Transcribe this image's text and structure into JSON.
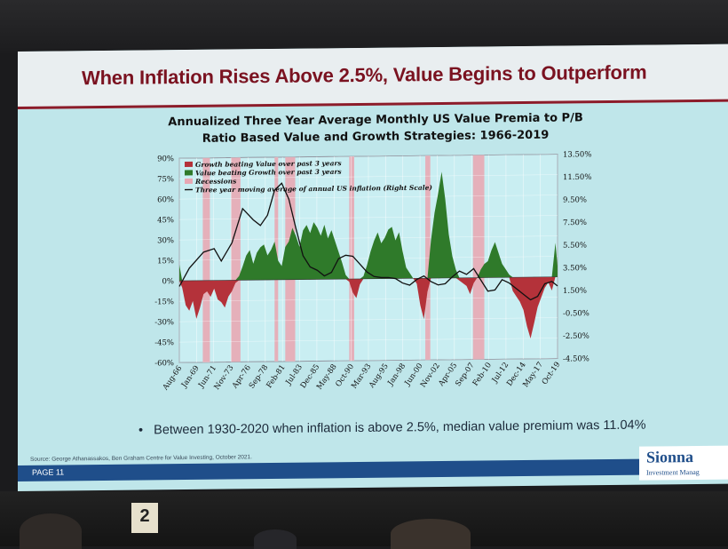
{
  "slide": {
    "title": "When Inflation Rises Above 2.5%, Value Begins to Outperform",
    "bullet_marker": "•",
    "bullet": "Between 1930-2020 when inflation is above 2.5%, median value premium was 11.04%",
    "source": "Source: George Athanassakos, Ben Graham Centre for Value Investing, October 2021.",
    "page": "PAGE  11",
    "logo_name": "Sionna",
    "logo_sub": "Investment Manag"
  },
  "room": {
    "sign_label": "2"
  },
  "colors": {
    "growth": "#b4323a",
    "value": "#2f7a2a",
    "recession": "#e8a8b4",
    "inflation_line": "#111111",
    "title": "#7a1220"
  },
  "chart_data": {
    "type": "area",
    "title_line1": "Annualized Three Year Average Monthly US Value Premia to P/B",
    "title_line2": "Ratio Based Value and Growth Strategies: 1966-2019",
    "legend": [
      "Growth beating Value over past 3 years",
      "Value beating Growth over past 3 years",
      "Recessions",
      "Three year moving average of annual US inflation (Right Scale)"
    ],
    "legend_placement": "top-left",
    "x_ticks": [
      "Aug-66",
      "Jan-69",
      "Jun-71",
      "Nov-73",
      "Apr-76",
      "Sep-78",
      "Feb-81",
      "Jul-83",
      "Dec-85",
      "May-88",
      "Oct-90",
      "Mar-93",
      "Aug-95",
      "Jan-98",
      "Jun-00",
      "Nov-02",
      "Apr-05",
      "Sep-07",
      "Feb-10",
      "Jul-12",
      "Dec-14",
      "May-17",
      "Oct-19"
    ],
    "x_range": [
      1966.6,
      2019.8
    ],
    "y_left_ticks": [
      "90%",
      "75%",
      "60%",
      "45%",
      "30%",
      "15%",
      "0%",
      "-15%",
      "-30%",
      "-45%",
      "-60%"
    ],
    "y_left_range": [
      -60,
      90
    ],
    "y_right_ticks": [
      "13.50%",
      "11.50%",
      "9.50%",
      "7.50%",
      "5.50%",
      "3.50%",
      "1.50%",
      "-0.50%",
      "-2.50%",
      "-4.50%"
    ],
    "y_right_range": [
      -4.5,
      13.5
    ],
    "recessions": [
      [
        1969.9,
        1970.9
      ],
      [
        1973.9,
        1975.2
      ],
      [
        1980.0,
        1980.5
      ],
      [
        1981.5,
        1982.9
      ],
      [
        1990.5,
        1991.2
      ],
      [
        2001.2,
        2001.9
      ],
      [
        2007.9,
        2009.5
      ]
    ],
    "premia": {
      "x": [
        1966.6,
        1967.0,
        1967.5,
        1968.0,
        1968.5,
        1969.0,
        1969.5,
        1970.0,
        1970.5,
        1971.0,
        1971.5,
        1972.0,
        1972.5,
        1973.0,
        1973.5,
        1974.0,
        1974.5,
        1975.0,
        1975.5,
        1976.0,
        1976.5,
        1977.0,
        1977.5,
        1978.0,
        1978.5,
        1979.0,
        1979.5,
        1980.0,
        1980.5,
        1981.0,
        1981.5,
        1982.0,
        1982.5,
        1983.0,
        1983.5,
        1984.0,
        1984.5,
        1985.0,
        1985.5,
        1986.0,
        1986.5,
        1987.0,
        1987.5,
        1988.0,
        1988.5,
        1989.0,
        1989.5,
        1990.0,
        1990.5,
        1991.0,
        1991.5,
        1992.0,
        1992.5,
        1993.0,
        1993.5,
        1994.0,
        1994.5,
        1995.0,
        1995.5,
        1996.0,
        1996.5,
        1997.0,
        1997.5,
        1998.0,
        1998.5,
        1999.0,
        1999.5,
        2000.0,
        2000.5,
        2001.0,
        2001.5,
        2002.0,
        2002.5,
        2003.0,
        2003.5,
        2004.0,
        2004.5,
        2005.0,
        2005.5,
        2006.0,
        2006.5,
        2007.0,
        2007.5,
        2008.0,
        2008.5,
        2009.0,
        2009.5,
        2010.0,
        2010.5,
        2011.0,
        2011.5,
        2012.0,
        2012.5,
        2013.0,
        2013.5,
        2014.0,
        2014.5,
        2015.0,
        2015.5,
        2016.0,
        2016.5,
        2017.0,
        2017.5,
        2018.0,
        2018.5,
        2019.0,
        2019.5,
        2019.8
      ],
      "values": [
        12,
        -5,
        -18,
        -22,
        -15,
        -28,
        -20,
        -10,
        -8,
        -12,
        -6,
        -14,
        -16,
        -20,
        -12,
        -8,
        -2,
        3,
        10,
        18,
        22,
        12,
        20,
        24,
        26,
        18,
        22,
        28,
        14,
        10,
        24,
        28,
        38,
        32,
        24,
        36,
        40,
        34,
        42,
        38,
        32,
        40,
        30,
        36,
        28,
        20,
        12,
        3,
        -2,
        -10,
        -14,
        -4,
        2,
        10,
        20,
        28,
        34,
        26,
        30,
        36,
        38,
        28,
        34,
        20,
        8,
        4,
        0,
        -4,
        -20,
        -30,
        -10,
        28,
        48,
        62,
        78,
        58,
        32,
        16,
        6,
        -2,
        -4,
        -6,
        -12,
        -4,
        0,
        6,
        10,
        12,
        20,
        26,
        18,
        10,
        6,
        2,
        -10,
        -14,
        -18,
        -24,
        -36,
        -45,
        -34,
        -22,
        -15,
        -8,
        -4,
        -10,
        25,
        8
      ]
    },
    "inflation": {
      "x": [
        1966.6,
        1968.0,
        1970.0,
        1971.5,
        1972.5,
        1974.0,
        1975.5,
        1977.0,
        1978.0,
        1979.0,
        1980.0,
        1981.0,
        1982.0,
        1983.0,
        1984.0,
        1985.0,
        1986.0,
        1987.0,
        1988.0,
        1989.0,
        1990.0,
        1991.0,
        1992.0,
        1993.0,
        1994.0,
        1995.0,
        1996.0,
        1997.0,
        1998.0,
        1999.0,
        2000.0,
        2001.0,
        2002.0,
        2003.0,
        2004.0,
        2005.0,
        2006.0,
        2007.0,
        2008.0,
        2009.0,
        2010.0,
        2011.0,
        2012.0,
        2013.0,
        2014.0,
        2015.0,
        2016.0,
        2017.0,
        2018.0,
        2019.0,
        2019.8
      ],
      "values": [
        2.2,
        3.8,
        5.2,
        5.5,
        4.4,
        6.0,
        9.0,
        8.0,
        7.5,
        8.4,
        10.6,
        11.2,
        9.8,
        7.2,
        4.8,
        3.8,
        3.5,
        3.0,
        3.3,
        4.5,
        4.8,
        4.7,
        4.0,
        3.3,
        2.9,
        2.8,
        2.8,
        2.7,
        2.3,
        2.1,
        2.6,
        2.9,
        2.4,
        2.1,
        2.2,
        2.8,
        3.3,
        3.0,
        3.5,
        2.5,
        1.5,
        1.6,
        2.5,
        2.2,
        1.7,
        1.2,
        0.7,
        1.0,
        2.1,
        2.3,
        1.9
      ]
    }
  }
}
